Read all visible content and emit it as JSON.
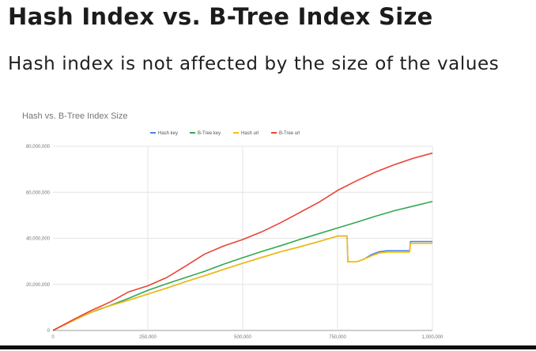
{
  "page": {
    "title": "Hash Index vs. B-Tree Index Size",
    "subtitle": "Hash index is not affected by the size of the values"
  },
  "chart_data": {
    "type": "line",
    "title": "Hash vs. B-Tree Index Size",
    "xlabel": "",
    "ylabel": "",
    "xlim": [
      0,
      1000000
    ],
    "ylim": [
      0,
      80000000
    ],
    "x_ticks": [
      0,
      250000,
      500000,
      750000,
      1000000
    ],
    "x_tick_labels": [
      "0",
      "250,000",
      "500,000",
      "750,000",
      "1,000,000"
    ],
    "y_ticks": [
      0,
      20000000,
      40000000,
      60000000,
      80000000
    ],
    "y_tick_labels": [
      "0",
      "20,000,000",
      "40,000,000",
      "60,000,000",
      "80,000,000"
    ],
    "grid": true,
    "legend_position": "top",
    "series": [
      {
        "name": "Hash key",
        "color": "#4a86e8",
        "points": [
          [
            0,
            0
          ],
          [
            40000,
            3200000
          ],
          [
            80000,
            6400000
          ],
          [
            120000,
            9200000
          ],
          [
            160000,
            11200000
          ],
          [
            200000,
            13200000
          ],
          [
            250000,
            15800000
          ],
          [
            300000,
            18400000
          ],
          [
            350000,
            21200000
          ],
          [
            400000,
            23800000
          ],
          [
            450000,
            26500000
          ],
          [
            500000,
            29200000
          ],
          [
            550000,
            31700000
          ],
          [
            600000,
            34200000
          ],
          [
            650000,
            36300000
          ],
          [
            700000,
            38600000
          ],
          [
            750000,
            41000000
          ],
          [
            775000,
            41000000
          ],
          [
            777000,
            29800000
          ],
          [
            800000,
            29800000
          ],
          [
            820000,
            31000000
          ],
          [
            840000,
            33000000
          ],
          [
            860000,
            34200000
          ],
          [
            880000,
            34600000
          ],
          [
            940000,
            34600000
          ],
          [
            942000,
            38600000
          ],
          [
            1000000,
            38600000
          ]
        ]
      },
      {
        "name": "B-Tree key",
        "color": "#34a853",
        "points": [
          [
            0,
            0
          ],
          [
            50000,
            4200000
          ],
          [
            100000,
            7800000
          ],
          [
            150000,
            10800000
          ],
          [
            200000,
            14000000
          ],
          [
            250000,
            17400000
          ],
          [
            300000,
            20300000
          ],
          [
            350000,
            23000000
          ],
          [
            400000,
            25700000
          ],
          [
            450000,
            28800000
          ],
          [
            500000,
            31600000
          ],
          [
            550000,
            34300000
          ],
          [
            600000,
            36800000
          ],
          [
            650000,
            39500000
          ],
          [
            700000,
            42000000
          ],
          [
            750000,
            44500000
          ],
          [
            800000,
            47000000
          ],
          [
            850000,
            49600000
          ],
          [
            900000,
            52000000
          ],
          [
            950000,
            54000000
          ],
          [
            1000000,
            56000000
          ]
        ]
      },
      {
        "name": "Hash url",
        "color": "#fbbc04",
        "points": [
          [
            0,
            0
          ],
          [
            40000,
            3200000
          ],
          [
            80000,
            6400000
          ],
          [
            120000,
            9200000
          ],
          [
            160000,
            11200000
          ],
          [
            200000,
            13200000
          ],
          [
            250000,
            15800000
          ],
          [
            300000,
            18400000
          ],
          [
            350000,
            21200000
          ],
          [
            400000,
            23800000
          ],
          [
            450000,
            26500000
          ],
          [
            500000,
            29200000
          ],
          [
            550000,
            31700000
          ],
          [
            600000,
            34200000
          ],
          [
            650000,
            36300000
          ],
          [
            700000,
            38600000
          ],
          [
            750000,
            41000000
          ],
          [
            775000,
            41000000
          ],
          [
            777000,
            29800000
          ],
          [
            800000,
            29800000
          ],
          [
            820000,
            31000000
          ],
          [
            840000,
            32400000
          ],
          [
            860000,
            33600000
          ],
          [
            880000,
            34000000
          ],
          [
            940000,
            34000000
          ],
          [
            942000,
            37800000
          ],
          [
            1000000,
            37800000
          ]
        ]
      },
      {
        "name": "B-Tree url",
        "color": "#ea4335",
        "points": [
          [
            0,
            0
          ],
          [
            50000,
            4400000
          ],
          [
            100000,
            8600000
          ],
          [
            150000,
            12300000
          ],
          [
            200000,
            16800000
          ],
          [
            250000,
            19400000
          ],
          [
            300000,
            23000000
          ],
          [
            350000,
            28000000
          ],
          [
            400000,
            33200000
          ],
          [
            450000,
            36700000
          ],
          [
            500000,
            39500000
          ],
          [
            550000,
            42800000
          ],
          [
            600000,
            46800000
          ],
          [
            650000,
            51200000
          ],
          [
            700000,
            55600000
          ],
          [
            750000,
            60800000
          ],
          [
            800000,
            65000000
          ],
          [
            850000,
            68800000
          ],
          [
            900000,
            72000000
          ],
          [
            950000,
            74800000
          ],
          [
            1000000,
            77000000
          ]
        ]
      }
    ]
  }
}
